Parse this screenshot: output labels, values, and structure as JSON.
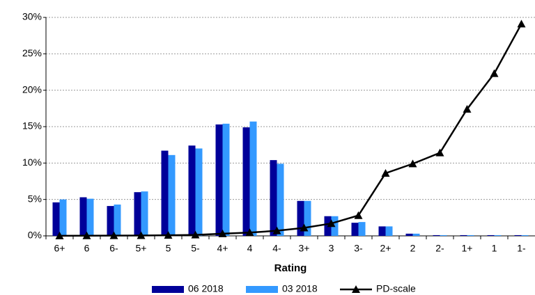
{
  "chart_data": {
    "type": "bar",
    "x_label": "Rating",
    "categories": [
      "6+",
      "6",
      "6-",
      "5+",
      "5",
      "5-",
      "4+",
      "4",
      "4-",
      "3+",
      "3",
      "3-",
      "2+",
      "2",
      "2-",
      "1+",
      "1",
      "1-"
    ],
    "series": [
      {
        "name": "06 2018",
        "color": "#000099",
        "type": "bar",
        "values": [
          4.6,
          5.3,
          4.1,
          6.0,
          11.7,
          12.4,
          15.3,
          14.9,
          10.4,
          4.8,
          2.7,
          1.8,
          1.3,
          0.3,
          0.1,
          0.1,
          0.1,
          0.1
        ]
      },
      {
        "name": "03 2018",
        "color": "#3399ff",
        "type": "bar",
        "values": [
          5.0,
          5.1,
          4.3,
          6.1,
          11.1,
          12.0,
          15.4,
          15.7,
          9.9,
          4.8,
          2.7,
          1.9,
          1.3,
          0.3,
          0.1,
          0.1,
          0.1,
          0.1
        ]
      },
      {
        "name": "PD-scale",
        "color": "#000000",
        "type": "line",
        "values": [
          0.01,
          0.02,
          0.03,
          0.05,
          0.08,
          0.13,
          0.3,
          0.45,
          0.7,
          1.1,
          1.7,
          2.8,
          8.6,
          9.9,
          11.4,
          17.4,
          22.3,
          29.1
        ]
      }
    ],
    "ylim": [
      0,
      30
    ],
    "yticks": [
      {
        "value": 0,
        "label": "0%"
      },
      {
        "value": 5,
        "label": "5%"
      },
      {
        "value": 10,
        "label": "10%"
      },
      {
        "value": 15,
        "label": "15%"
      },
      {
        "value": 20,
        "label": "20%"
      },
      {
        "value": 25,
        "label": "25%"
      },
      {
        "value": 30,
        "label": "30%"
      }
    ],
    "grid": true,
    "legend": "bottom"
  }
}
